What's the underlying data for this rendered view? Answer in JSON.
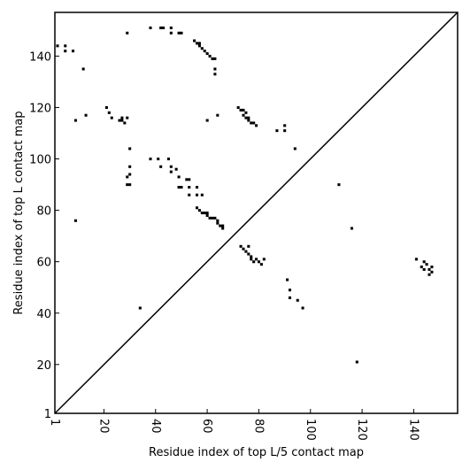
{
  "chart_data": {
    "type": "scatter",
    "xlabel": "Residue index of top L/5 contact map",
    "ylabel": "Residue index of top L contact map",
    "xlim": [
      1,
      157
    ],
    "ylim": [
      1,
      157
    ],
    "xticks": [
      1,
      20,
      40,
      60,
      80,
      100,
      120,
      140
    ],
    "yticks": [
      1,
      20,
      40,
      60,
      80,
      100,
      120,
      140
    ],
    "diagonal": true,
    "marker": "square",
    "color": "#000000",
    "upper_points": [
      [
        2,
        144
      ],
      [
        5,
        144
      ],
      [
        5,
        142
      ],
      [
        8,
        142
      ],
      [
        12,
        135
      ],
      [
        9,
        115
      ],
      [
        13,
        117
      ],
      [
        21,
        120
      ],
      [
        22,
        118
      ],
      [
        23,
        116
      ],
      [
        26,
        115
      ],
      [
        27,
        115
      ],
      [
        27,
        116
      ],
      [
        28,
        114
      ],
      [
        29,
        116
      ],
      [
        29,
        149
      ],
      [
        30,
        104
      ],
      [
        30,
        97
      ],
      [
        30,
        94
      ],
      [
        29,
        93
      ],
      [
        30,
        90
      ],
      [
        29,
        90
      ],
      [
        38,
        100
      ],
      [
        41,
        100
      ],
      [
        42,
        97
      ],
      [
        45,
        100
      ],
      [
        46,
        97
      ],
      [
        46,
        95
      ],
      [
        48,
        96
      ],
      [
        49,
        93
      ],
      [
        38,
        151
      ],
      [
        42,
        151
      ],
      [
        43,
        151
      ],
      [
        46,
        151
      ],
      [
        46,
        149
      ],
      [
        49,
        149
      ],
      [
        50,
        149
      ],
      [
        49,
        89
      ],
      [
        50,
        89
      ],
      [
        52,
        92
      ],
      [
        53,
        92
      ],
      [
        53,
        89
      ],
      [
        53,
        86
      ],
      [
        56,
        89
      ],
      [
        55,
        146
      ],
      [
        56,
        145
      ],
      [
        57,
        145
      ],
      [
        57,
        144
      ],
      [
        58,
        143
      ],
      [
        59,
        142
      ],
      [
        60,
        141
      ],
      [
        61,
        140
      ],
      [
        62,
        139
      ],
      [
        63,
        139
      ],
      [
        63,
        135
      ],
      [
        63,
        133
      ],
      [
        64,
        117
      ],
      [
        60,
        115
      ],
      [
        56,
        86
      ],
      [
        58,
        86
      ],
      [
        56,
        81
      ],
      [
        57,
        80
      ],
      [
        58,
        79
      ],
      [
        59,
        79
      ],
      [
        60,
        79
      ],
      [
        60,
        78
      ],
      [
        61,
        77
      ],
      [
        62,
        77
      ],
      [
        63,
        77
      ],
      [
        64,
        76
      ],
      [
        64,
        75
      ],
      [
        65,
        74
      ],
      [
        66,
        74
      ],
      [
        66,
        73
      ],
      [
        72,
        120
      ],
      [
        73,
        119
      ],
      [
        74,
        119
      ],
      [
        75,
        118
      ],
      [
        74,
        117
      ],
      [
        75,
        116
      ],
      [
        76,
        116
      ],
      [
        76,
        115
      ],
      [
        77,
        114
      ],
      [
        78,
        114
      ],
      [
        79,
        113
      ],
      [
        87,
        111
      ],
      [
        90,
        111
      ],
      [
        90,
        113
      ],
      [
        94,
        104
      ],
      [
        111,
        90
      ],
      [
        73,
        66
      ],
      [
        74,
        65
      ],
      [
        75,
        64
      ],
      [
        76,
        66
      ],
      [
        76,
        63
      ],
      [
        77,
        62
      ],
      [
        77,
        61
      ],
      [
        78,
        60
      ],
      [
        79,
        61
      ],
      [
        80,
        60
      ],
      [
        82,
        61
      ],
      [
        81,
        59
      ],
      [
        91,
        53
      ],
      [
        92,
        49
      ],
      [
        92,
        46
      ],
      [
        95,
        45
      ],
      [
        97,
        42
      ],
      [
        34,
        42
      ],
      [
        116,
        73
      ],
      [
        118,
        21
      ],
      [
        9,
        76
      ],
      [
        141,
        61
      ],
      [
        143,
        58
      ],
      [
        144,
        57
      ],
      [
        144,
        60
      ],
      [
        145,
        59
      ],
      [
        146,
        57
      ],
      [
        146,
        55
      ],
      [
        147,
        56
      ],
      [
        147,
        58
      ]
    ]
  }
}
